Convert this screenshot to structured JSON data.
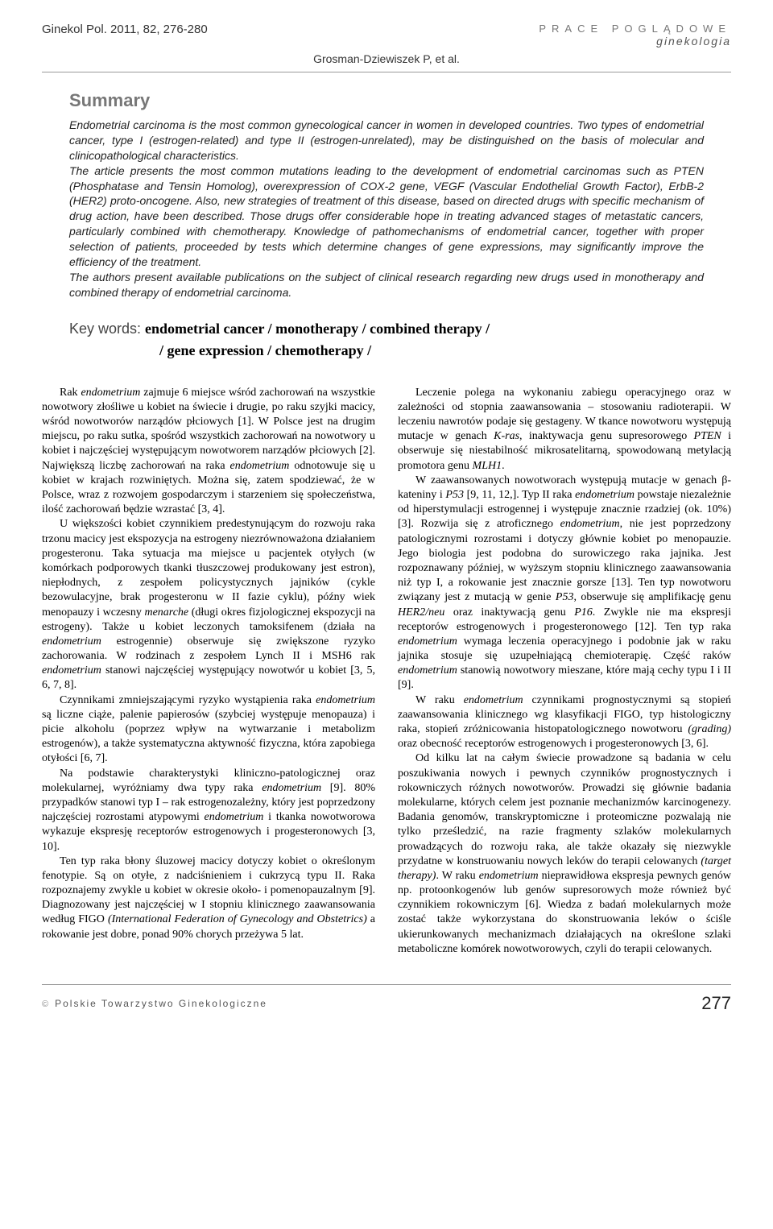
{
  "header": {
    "journal": "Ginekol Pol. 2011, 82, 276-280",
    "section_line1": "PRACE POGLĄDOWE",
    "section_line2": "ginekologia",
    "authors": "Grosman-Dziewiszek P, et al."
  },
  "summary": {
    "title": "Summary",
    "paragraphs": [
      "Endometrial carcinoma is the most common gynecological cancer in women in developed countries. Two types of endometrial cancer, type I (estrogen-related) and type II (estrogen-unrelated), may be distinguished on the basis of molecular and clinicopathological characteristics.",
      "The article presents the most common mutations leading to the development of endometrial carcinomas such as PTEN (Phosphatase and Tensin Homolog), overexpression of COX-2 gene, VEGF (Vascular Endothelial Growth Factor), ErbB-2 (HER2) proto-oncogene. Also, new strategies of treatment of this disease, based on directed drugs with specific mechanism of drug action, have been described. Those drugs offer considerable hope in treating advanced stages of metastatic cancers, particularly combined with chemotherapy. Knowledge of pathomechanisms of endometrial cancer, together with proper selection of patients, proceeded by tests which determine changes of gene expressions, may significantly improve the efficiency of the treatment.",
      "The authors present available publications on the subject of clinical research regarding new drugs used in monotherapy and combined therapy of endometrial carcinoma."
    ]
  },
  "keywords": {
    "label": "Key words: ",
    "line1": "endometrial cancer / monotherapy / combined therapy /",
    "line2": "/ gene expression / chemotherapy /"
  },
  "body": {
    "left": [
      "Rak <em>endometrium</em> zajmuje 6 miejsce wśród zachorowań na wszystkie nowotwory złośliwe u kobiet na świecie i drugie, po raku szyjki macicy, wśród nowotworów narządów płciowych [1]. W Polsce jest na drugim miejscu, po raku sutka, spośród wszystkich zachorowań na nowotwory u kobiet i najczęściej występującym nowotworem narządów płciowych [2]. Największą liczbę zachorowań na raka <em>endometrium</em> odnotowuje się u kobiet w krajach rozwiniętych. Można się, zatem spodziewać, że w Polsce, wraz z rozwojem gospodarczym i starzeniem się społeczeństwa, ilość zachorowań będzie wzrastać [3, 4].",
      "U większości kobiet czynnikiem predestynującym do rozwoju raka trzonu macicy jest ekspozycja na estrogeny niezrównoważona działaniem progesteronu. Taka sytuacja ma miejsce u pacjentek otyłych (w komórkach podporowych tkanki tłuszczowej produkowany jest estron), niepłodnych, z zespołem policystycznych jajników (cykle bezowulacyjne, brak progesteronu w II fazie cyklu), późny wiek menopauzy i wczesny <em>menarche</em> (długi okres fizjologicznej ekspozycji na estrogeny). Także u kobiet leczonych tamoksifenem (działa na <em>endometrium</em> estrogennie) obserwuje się zwiększone ryzyko zachorowania. W rodzinach z zespołem Lynch II i MSH6 rak <em>endometrium</em> stanowi najczęściej występujący nowotwór u kobiet [3, 5, 6, 7, 8].",
      "Czynnikami zmniejszającymi ryzyko wystąpienia raka <em>endometrium</em> są liczne ciąże, palenie papierosów (szybciej występuje menopauza) i picie alkoholu (poprzez wpływ na wytwarzanie i metabolizm estrogenów), a także systematyczna aktywność fizyczna, która zapobiega otyłości [6, 7].",
      "Na podstawie charakterystyki kliniczno-patologicznej oraz molekularnej, wyróżniamy dwa typy raka <em>endometrium</em> [9]. 80% przypadków stanowi typ I – rak estrogenozależny, który jest poprzedzony najczęściej rozrostami atypowymi <em>endometrium</em> i tkanka nowotworowa wykazuje ekspresję receptorów estrogenowych i progesteronowych [3, 10].",
      "Ten typ raka błony śluzowej macicy dotyczy kobiet o określonym fenotypie. Są on otyłe, z nadciśnieniem i cukrzycą typu II. Raka rozpoznajemy zwykle u kobiet w okresie około- i pomenopauzalnym [9]. Diagnozowany jest najczęściej w I stopniu klinicznego zaawansowania według FIGO <em>(International Federation of Gynecology and Obstetrics)</em> a rokowanie jest dobre, ponad 90% chorych przeżywa 5 lat."
    ],
    "right": [
      "Leczenie polega na wykonaniu zabiegu operacyjnego oraz w zależności od stopnia zaawansowania – stosowaniu radioterapii. W leczeniu nawrotów podaje się gestageny. W tkance nowotworu występują mutacje w genach <em>K-ras</em>, inaktywacja genu supresorowego <em>PTEN</em> i obserwuje się niestabilność mikrosatelitarną, spowodowaną metylacją promotora genu <em>MLH1</em>.",
      "W zaawansowanych nowotworach występują mutacje w genach β-kateniny i <em>P53</em> [9, 11, 12,]. Typ II raka <em>endometrium</em> powstaje niezależnie od hiperstymulacji estrogennej i występuje znacznie rzadziej (ok. 10%) [3]. Rozwija się z atroficznego <em>endometrium</em>, nie jest poprzedzony patologicznymi rozrostami i dotyczy głównie kobiet po menopauzie. Jego biologia jest podobna do surowiczego raka jajnika. Jest rozpoznawany później, w wyższym stopniu klinicznego zaawansowania niż typ I, a rokowanie jest znacznie gorsze [13]. Ten typ nowotworu związany jest z mutacją w genie <em>P53</em>, obserwuje się amplifikację genu <em>HER2/neu</em> oraz inaktywacją genu <em>P16</em>. Zwykle nie ma ekspresji receptorów estrogenowych i progesteronowego [12]. Ten typ raka <em>endometrium</em> wymaga leczenia operacyjnego i podobnie jak w raku jajnika stosuje się uzupełniającą chemioterapię. Część raków <em>endometrium</em> stanowią nowotwory mieszane, które mają cechy typu I i II [9].",
      "W raku <em>endometrium</em> czynnikami prognostycznymi są stopień zaawansowania klinicznego wg klasyfikacji FIGO, typ histologiczny raka, stopień zróżnicowania histopatologicznego nowotworu <em>(grading)</em> oraz obecność receptorów estrogenowych i progesteronowych [3, 6].",
      "Od kilku lat na całym świecie prowadzone są badania w celu poszukiwania nowych i pewnych czynników prognostycznych i rokowniczych różnych nowotworów. Prowadzi się głównie badania molekularne, których celem jest poznanie mechanizmów karcinogenezy. Badania genomów, transkryptomiczne i proteomiczne pozwalają nie tylko prześledzić, na razie fragmenty szlaków molekularnych prowadzących do rozwoju raka, ale także okazały się niezwykle przydatne w konstruowaniu nowych leków do terapii celowanych <em>(target therapy)</em>. W raku <em>endometrium</em> nieprawidłowa ekspresja pewnych genów np. protoonkogenów lub genów supresorowych może również być czynnikiem rokowniczym [6]. Wiedza z badań molekularnych może zostać także wykorzystana do skonstruowania leków o ściśle ukierunkowanych mechanizmach działających na określone szlaki metaboliczne komórek nowotworowych, czyli do terapii celowanych."
    ]
  },
  "footer": {
    "publisher": "Polskie Towarzystwo Ginekologiczne",
    "page": "277"
  }
}
